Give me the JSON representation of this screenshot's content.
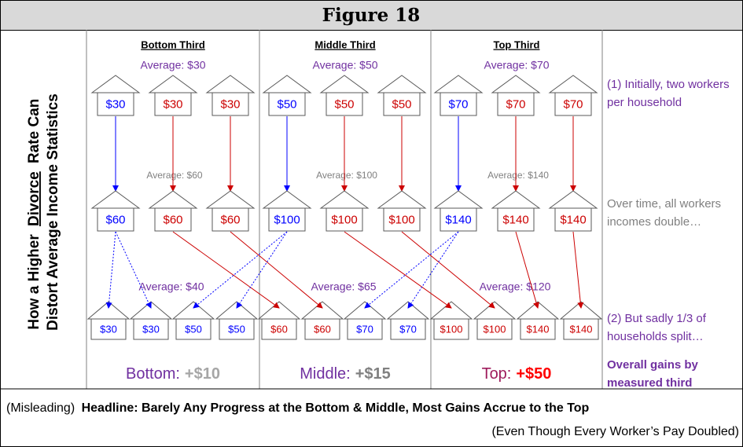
{
  "title": "Figure 18",
  "side_title": {
    "pre": "How a Higher",
    "underlined": "Divorce",
    "post": "Rate Can",
    "line2": "Distort Average Income Statistics"
  },
  "groups": [
    {
      "name": "Bottom Third",
      "avg1": "Average: $30",
      "row1": [
        "$30",
        "$30",
        "$30"
      ],
      "row1_colors": [
        "blue",
        "red",
        "red"
      ],
      "avg2": "Average: $60",
      "row2": [
        "$60",
        "$60",
        "$60"
      ],
      "row2_colors": [
        "blue",
        "red",
        "red"
      ],
      "avg3": "Average: $40",
      "row3": [
        "$30",
        "$30",
        "$50",
        "$50"
      ],
      "row3_colors": [
        "blue",
        "blue",
        "blue",
        "blue"
      ],
      "gain_label": "Bottom:",
      "gain": "+$10",
      "gain_label_color": "#7030a0",
      "gain_color": "#a6a6a6"
    },
    {
      "name": "Middle Third",
      "avg1": "Average: $50",
      "row1": [
        "$50",
        "$50",
        "$50"
      ],
      "row1_colors": [
        "blue",
        "red",
        "red"
      ],
      "avg2": "Average: $100",
      "row2": [
        "$100",
        "$100",
        "$100"
      ],
      "row2_colors": [
        "blue",
        "red",
        "red"
      ],
      "avg3": "Average: $65",
      "row3": [
        "$60",
        "$60",
        "$70",
        "$70"
      ],
      "row3_colors": [
        "red",
        "red",
        "blue",
        "blue"
      ],
      "gain_label": "Middle:",
      "gain": "+$15",
      "gain_label_color": "#7030a0",
      "gain_color": "#808080"
    },
    {
      "name": "Top Third",
      "avg1": "Average: $70",
      "row1": [
        "$70",
        "$70",
        "$70"
      ],
      "row1_colors": [
        "blue",
        "red",
        "red"
      ],
      "avg2": "Average: $140",
      "row2": [
        "$140",
        "$140",
        "$140"
      ],
      "row2_colors": [
        "blue",
        "red",
        "red"
      ],
      "avg3": "Average: $120",
      "row3": [
        "$100",
        "$100",
        "$140",
        "$140"
      ],
      "row3_colors": [
        "red",
        "red",
        "red",
        "red"
      ],
      "gain_label": "Top:",
      "gain": "+$50",
      "gain_label_color": "#9e1b5c",
      "gain_color": "#ff0000"
    }
  ],
  "notes": [
    {
      "lines": [
        "(1) Initially, two workers",
        "per household"
      ],
      "color": "#7030a0",
      "bold": false
    },
    {
      "lines": [
        "Over time, all workers",
        "incomes double…"
      ],
      "color": "#808080",
      "bold": false
    },
    {
      "lines": [
        "(2) But sadly 1/3 of",
        "households split…"
      ],
      "color": "#7030a0",
      "bold": false
    },
    {
      "lines": [
        "Overall gains by",
        "measured third"
      ],
      "color": "#7030a0",
      "bold": true
    }
  ],
  "footer": {
    "prefix": "(Misleading)",
    "headline": "Headline: Barely Any Progress at the Bottom & Middle, Most Gains Accrue to the Top",
    "sub": "(Even Though Every Worker’s Pay Doubled)"
  }
}
